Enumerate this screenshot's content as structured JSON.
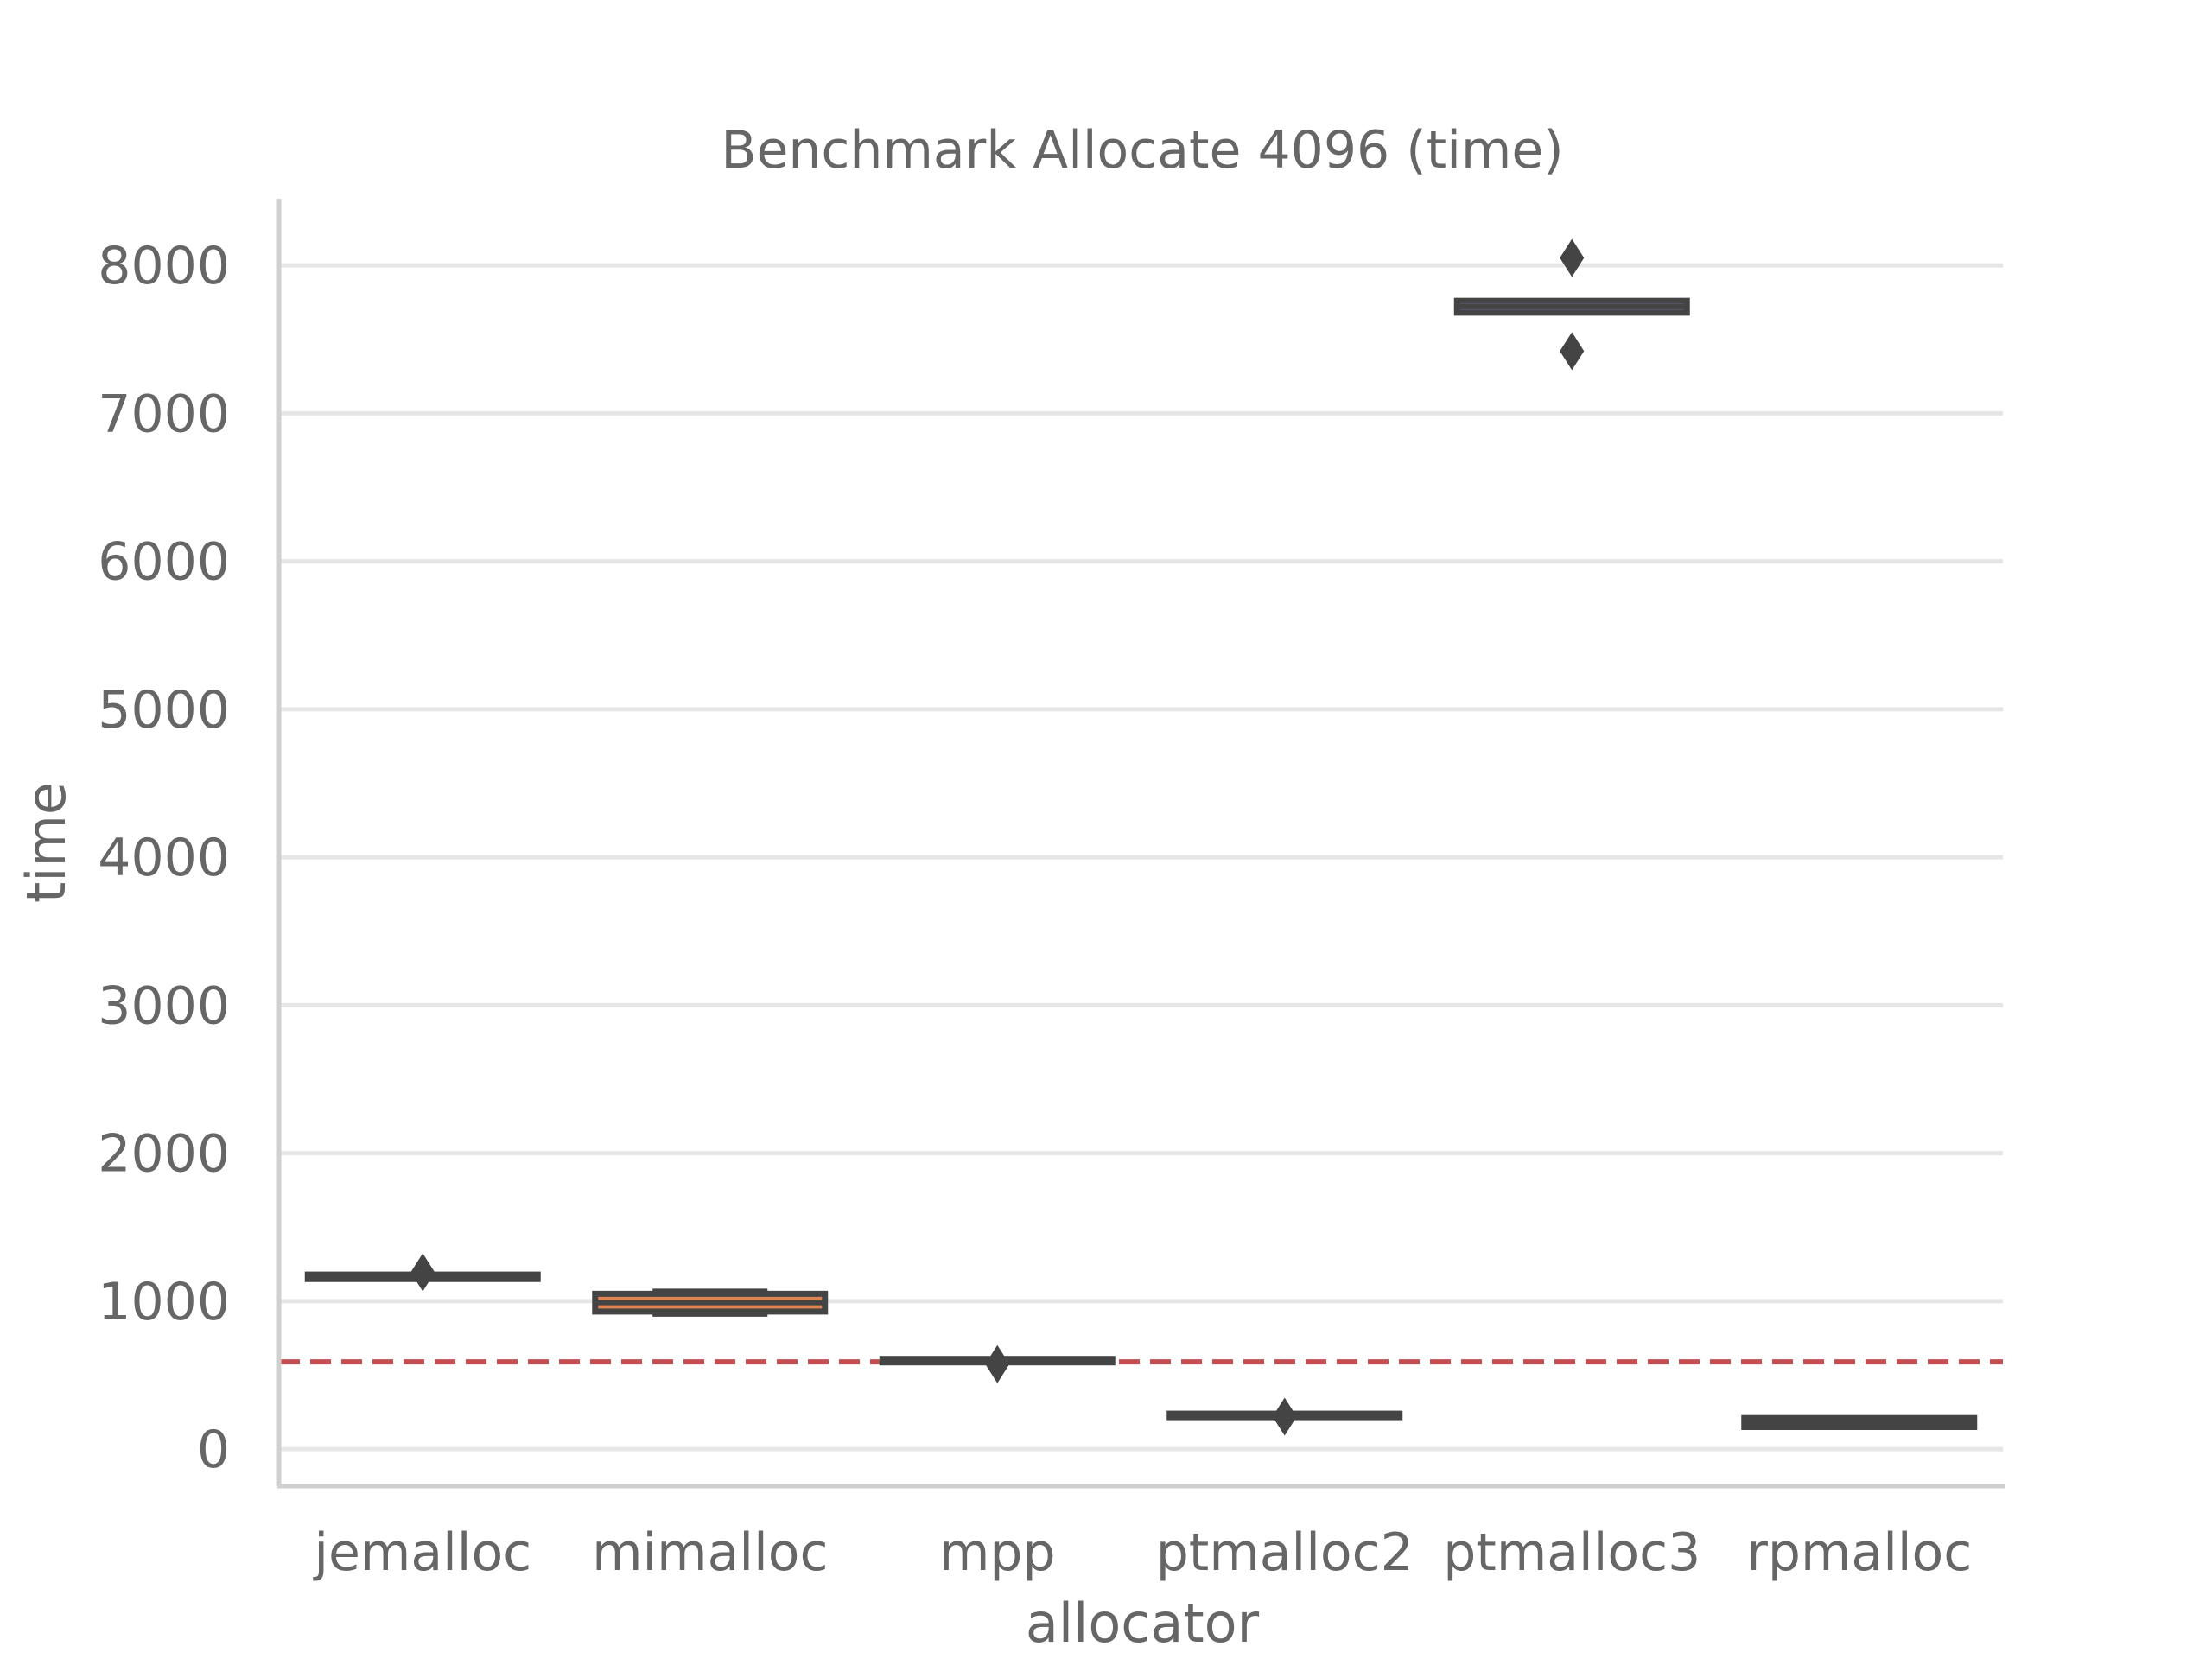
{
  "chart_data": {
    "type": "box",
    "title": "Benchmark Allocate 4096 (time)",
    "xlabel": "allocator",
    "ylabel": "time",
    "ylim": [
      -250,
      8450
    ],
    "yticks": [
      0,
      1000,
      2000,
      3000,
      4000,
      5000,
      6000,
      7000,
      8000
    ],
    "grid": true,
    "categories": [
      "jemalloc",
      "mimalloc",
      "mpp",
      "ptmalloc2",
      "ptmalloc3",
      "rpmalloc"
    ],
    "boxes": [
      {
        "category": "jemalloc",
        "q1": 1150,
        "median": 1165,
        "q3": 1180,
        "whisker_low": 1150,
        "whisker_high": 1180,
        "outliers": [
          1195
        ],
        "color": "#4c72b0"
      },
      {
        "category": "mimalloc",
        "q1": 930,
        "median": 990,
        "q3": 1050,
        "whisker_low": 910,
        "whisker_high": 1070,
        "outliers": [],
        "color": "#dd8452"
      },
      {
        "category": "mpp",
        "q1": 590,
        "median": 600,
        "q3": 610,
        "whisker_low": 590,
        "whisker_high": 610,
        "outliers": [
          575
        ],
        "color": "#55a868"
      },
      {
        "category": "ptmalloc2",
        "q1": 220,
        "median": 230,
        "q3": 240,
        "whisker_low": 220,
        "whisker_high": 240,
        "outliers": [
          220
        ],
        "color": "#c44e52"
      },
      {
        "category": "ptmalloc3",
        "q1": 7680,
        "median": 7720,
        "q3": 7760,
        "whisker_low": 7680,
        "whisker_high": 7760,
        "outliers": [
          8050,
          7420
        ],
        "color": "#8172b3"
      },
      {
        "category": "rpmalloc",
        "q1": 150,
        "median": 180,
        "q3": 210,
        "whisker_low": 150,
        "whisker_high": 210,
        "outliers": [],
        "color": "#937860"
      }
    ],
    "reference_line": {
      "y": 590,
      "style": "dashed",
      "color": "#c44e52"
    },
    "colors": {
      "grid": "#e6e6e6",
      "spine": "#d0d0d0",
      "text": "#666666",
      "box_edge": "#444444",
      "flier": "#444444"
    }
  }
}
